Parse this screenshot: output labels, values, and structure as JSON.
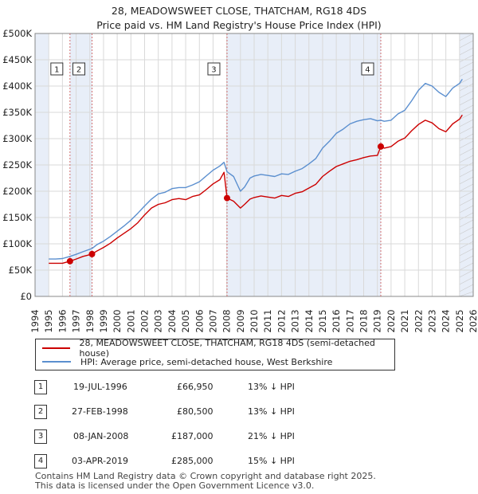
{
  "title_line1": "28, MEADOWSWEET CLOSE, THATCHAM, RG18 4DS",
  "title_line2": "Price paid vs. HM Land Registry's House Price Index (HPI)",
  "colors": {
    "property": "#cc0000",
    "hpi": "#5b8fcf",
    "shade": "#e8eef8",
    "grid": "#d9d9d9",
    "marker_line": "#d07070"
  },
  "legend": {
    "property_label": "28, MEADOWSWEET CLOSE, THATCHAM, RG18 4DS (semi-detached house)",
    "hpi_label": "HPI: Average price, semi-detached house, West Berkshire"
  },
  "transactions": [
    {
      "num": "1",
      "date": "19-JUL-1996",
      "price": "£66,950",
      "hpi_diff": "13% ↓ HPI"
    },
    {
      "num": "2",
      "date": "27-FEB-1998",
      "price": "£80,500",
      "hpi_diff": "13% ↓ HPI"
    },
    {
      "num": "3",
      "date": "08-JAN-2008",
      "price": "£187,000",
      "hpi_diff": "21% ↓ HPI"
    },
    {
      "num": "4",
      "date": "03-APR-2019",
      "price": "£285,000",
      "hpi_diff": "15% ↓ HPI"
    }
  ],
  "footer_line1": "Contains HM Land Registry data © Crown copyright and database right 2025.",
  "footer_line2": "This data is licensed under the Open Government Licence v3.0.",
  "chart_data": {
    "type": "line",
    "title": "28, MEADOWSWEET CLOSE, THATCHAM, RG18 4DS — Price paid vs. HM Land Registry's House Price Index (HPI)",
    "xlabel": "",
    "ylabel": "",
    "xlim": [
      1994,
      2026
    ],
    "ylim": [
      0,
      500000
    ],
    "x_ticks": [
      1994,
      1995,
      1996,
      1997,
      1998,
      1999,
      2000,
      2001,
      2002,
      2003,
      2004,
      2005,
      2006,
      2007,
      2008,
      2009,
      2010,
      2011,
      2012,
      2013,
      2014,
      2015,
      2016,
      2017,
      2018,
      2019,
      2020,
      2021,
      2022,
      2023,
      2024,
      2025,
      2026
    ],
    "y_ticks": [
      0,
      50000,
      100000,
      150000,
      200000,
      250000,
      300000,
      350000,
      400000,
      450000,
      500000
    ],
    "y_tick_labels": [
      "£0",
      "£50K",
      "£100K",
      "£150K",
      "£200K",
      "£250K",
      "£300K",
      "£350K",
      "£400K",
      "£450K",
      "£500K"
    ],
    "shaded_ranges": [
      [
        1994,
        1995
      ],
      [
        1996.55,
        1998.16
      ],
      [
        2008.02,
        2019.25
      ],
      [
        2025.0,
        2026
      ]
    ],
    "sale_points": [
      {
        "label": "1",
        "x": 1996.55,
        "y": 66950
      },
      {
        "label": "2",
        "x": 1998.16,
        "y": 80500
      },
      {
        "label": "3",
        "x": 2008.02,
        "y": 187000
      },
      {
        "label": "4",
        "x": 2019.25,
        "y": 285000
      }
    ],
    "series": [
      {
        "name": "28, MEADOWSWEET CLOSE, THATCHAM, RG18 4DS (semi-detached house)",
        "x": [
          1995.0,
          1995.5,
          1996.0,
          1996.55,
          1997.0,
          1997.5,
          1998.16,
          1998.5,
          1999.0,
          1999.5,
          2000.0,
          2000.5,
          2001.0,
          2001.5,
          2002.0,
          2002.5,
          2003.0,
          2003.5,
          2004.0,
          2004.5,
          2005.0,
          2005.5,
          2006.0,
          2006.5,
          2007.0,
          2007.5,
          2007.8,
          2008.02,
          2008.5,
          2009.0,
          2009.3,
          2009.7,
          2010.0,
          2010.5,
          2011.0,
          2011.5,
          2012.0,
          2012.5,
          2013.0,
          2013.5,
          2014.0,
          2014.5,
          2015.0,
          2015.5,
          2016.0,
          2016.5,
          2017.0,
          2017.5,
          2018.0,
          2018.5,
          2019.0,
          2019.25,
          2019.5,
          2020.0,
          2020.5,
          2021.0,
          2021.5,
          2022.0,
          2022.5,
          2023.0,
          2023.5,
          2024.0,
          2024.5,
          2025.0,
          2025.2
        ],
        "values": [
          63000,
          63000,
          63000,
          66950,
          71000,
          76000,
          80500,
          86000,
          93000,
          101000,
          111000,
          120000,
          129000,
          140000,
          155000,
          168000,
          175000,
          178000,
          184000,
          186000,
          184000,
          190000,
          193000,
          203000,
          214000,
          222000,
          236000,
          187000,
          181000,
          168000,
          175000,
          185000,
          188000,
          191000,
          189000,
          187000,
          192000,
          190000,
          196000,
          199000,
          206000,
          213000,
          228000,
          238000,
          247000,
          252000,
          257000,
          260000,
          264000,
          267000,
          268000,
          285000,
          282000,
          285000,
          295000,
          301000,
          315000,
          327000,
          335000,
          330000,
          319000,
          313000,
          328000,
          337000,
          345000
        ]
      },
      {
        "name": "HPI: Average price, semi-detached house, West Berkshire",
        "x": [
          1995.0,
          1995.5,
          1996.0,
          1996.55,
          1997.0,
          1997.5,
          1998.16,
          1998.5,
          1999.0,
          1999.5,
          2000.0,
          2000.5,
          2001.0,
          2001.5,
          2002.0,
          2002.5,
          2003.0,
          2003.5,
          2004.0,
          2004.5,
          2005.0,
          2005.5,
          2006.0,
          2006.5,
          2007.0,
          2007.5,
          2007.8,
          2008.02,
          2008.5,
          2009.0,
          2009.3,
          2009.7,
          2010.0,
          2010.5,
          2011.0,
          2011.5,
          2012.0,
          2012.5,
          2013.0,
          2013.5,
          2014.0,
          2014.5,
          2015.0,
          2015.5,
          2016.0,
          2016.5,
          2017.0,
          2017.5,
          2018.0,
          2018.5,
          2019.0,
          2019.25,
          2019.5,
          2020.0,
          2020.5,
          2021.0,
          2021.5,
          2022.0,
          2022.5,
          2023.0,
          2023.5,
          2024.0,
          2024.5,
          2025.0,
          2025.2
        ],
        "values": [
          71000,
          71000,
          72000,
          76000,
          80000,
          85000,
          91000,
          98000,
          105000,
          114000,
          124000,
          134000,
          145000,
          158000,
          172000,
          185000,
          195000,
          198000,
          205000,
          207000,
          207000,
          212000,
          218000,
          229000,
          240000,
          248000,
          255000,
          237000,
          228000,
          200000,
          208000,
          225000,
          229000,
          232000,
          230000,
          228000,
          233000,
          232000,
          238000,
          243000,
          252000,
          262000,
          282000,
          295000,
          310000,
          318000,
          328000,
          333000,
          336000,
          338000,
          334000,
          335000,
          333000,
          335000,
          347000,
          354000,
          372000,
          392000,
          405000,
          400000,
          388000,
          380000,
          396000,
          405000,
          413000
        ]
      }
    ]
  }
}
